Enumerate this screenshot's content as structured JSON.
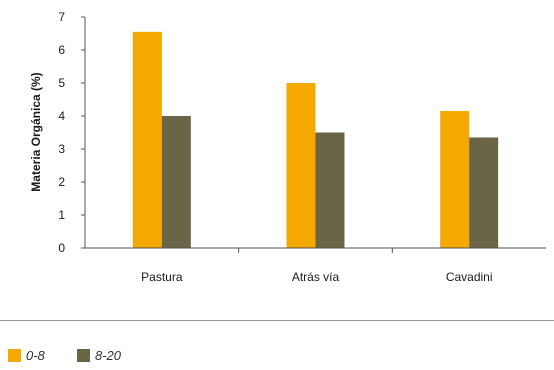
{
  "chart_data": {
    "type": "bar",
    "ylabel": "Materia Orgánica (%)",
    "xlabel": "",
    "ylim": [
      0,
      7
    ],
    "yticks": [
      0,
      1,
      2,
      3,
      4,
      5,
      6,
      7
    ],
    "categories": [
      "Pastura",
      "Atrás vía",
      "Cavadini"
    ],
    "series": [
      {
        "name": "0-8",
        "color": "#F5A800",
        "values": [
          6.55,
          5.0,
          4.15
        ]
      },
      {
        "name": "8-20",
        "color": "#6B6548",
        "values": [
          4.0,
          3.5,
          3.35
        ]
      }
    ],
    "grid": false,
    "legend": "bottom-left"
  }
}
